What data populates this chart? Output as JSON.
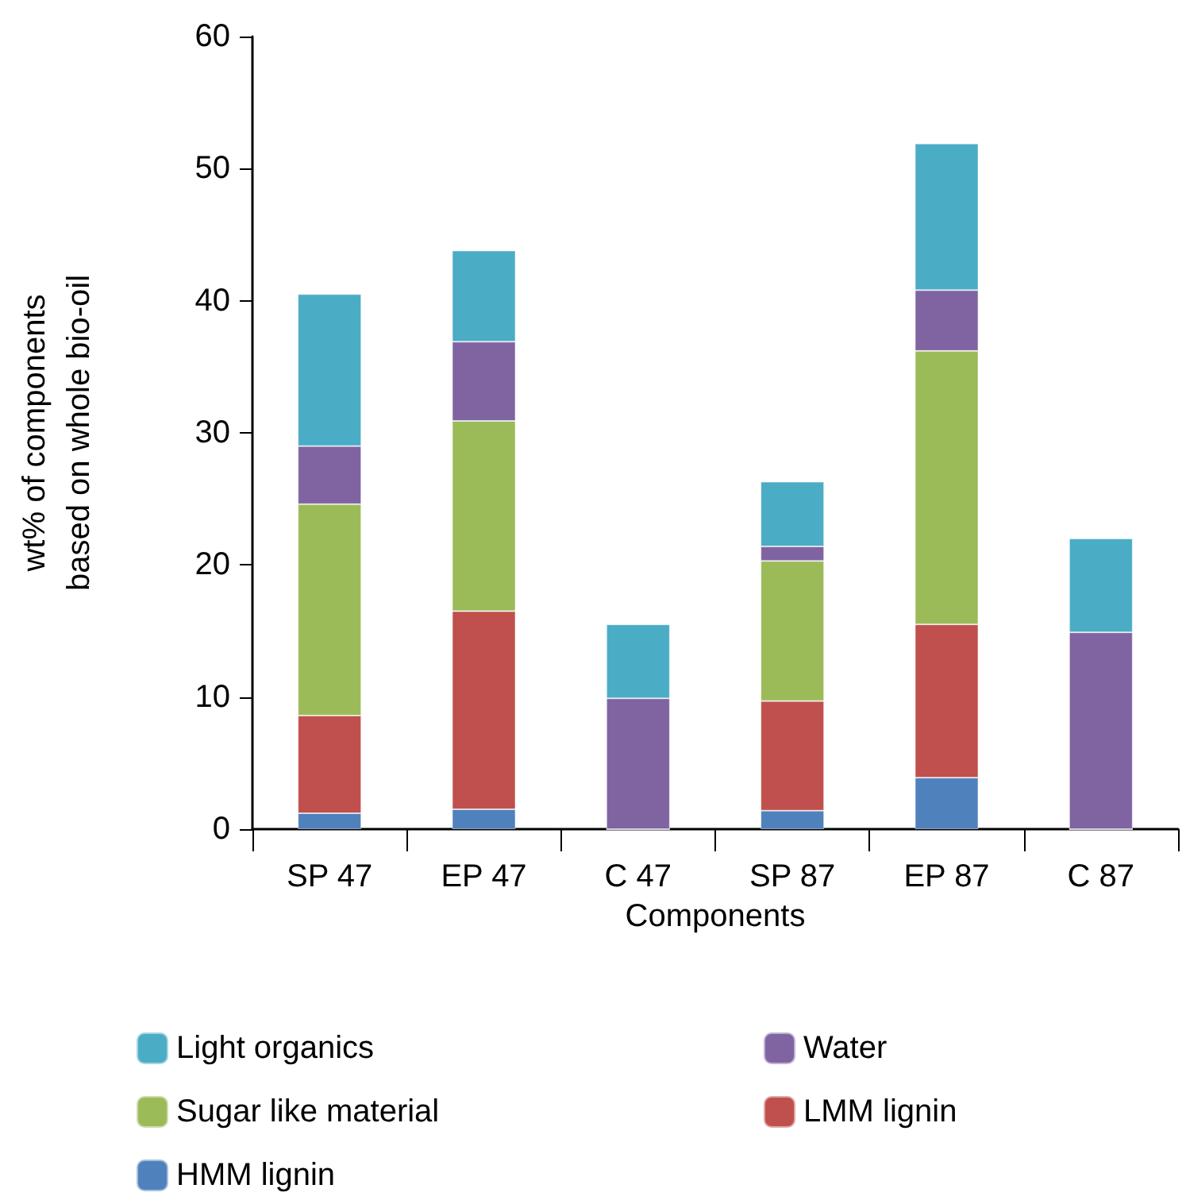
{
  "chart_data": {
    "type": "bar",
    "stacked": true,
    "xlabel": "Components",
    "ylabel": "wt% of components based on whole bio-oil",
    "categories": [
      "SP 47",
      "EP 47",
      "C 47",
      "SP 87",
      "EP 87",
      "C 87"
    ],
    "series": [
      {
        "name": "HMM lignin",
        "color": "#4f81bd",
        "values": [
          1.2,
          1.5,
          0,
          1.4,
          3.9,
          0
        ]
      },
      {
        "name": "LMM lignin",
        "color": "#c0504d",
        "values": [
          7.4,
          15.0,
          0,
          8.3,
          11.6,
          0
        ]
      },
      {
        "name": "Sugar like material",
        "color": "#9bbb59",
        "values": [
          16.0,
          14.4,
          0,
          10.6,
          20.7,
          0
        ]
      },
      {
        "name": "Water",
        "color": "#8064a2",
        "values": [
          4.4,
          6.0,
          9.9,
          1.1,
          4.6,
          14.9
        ]
      },
      {
        "name": "Light organics",
        "color": "#4bacc6",
        "values": [
          11.5,
          6.9,
          5.6,
          4.9,
          11.1,
          7.1
        ]
      }
    ],
    "ylim": [
      0,
      60
    ],
    "yticks": [
      0,
      10,
      20,
      30,
      40,
      50,
      60
    ],
    "grid": false,
    "legend": "bottom"
  }
}
